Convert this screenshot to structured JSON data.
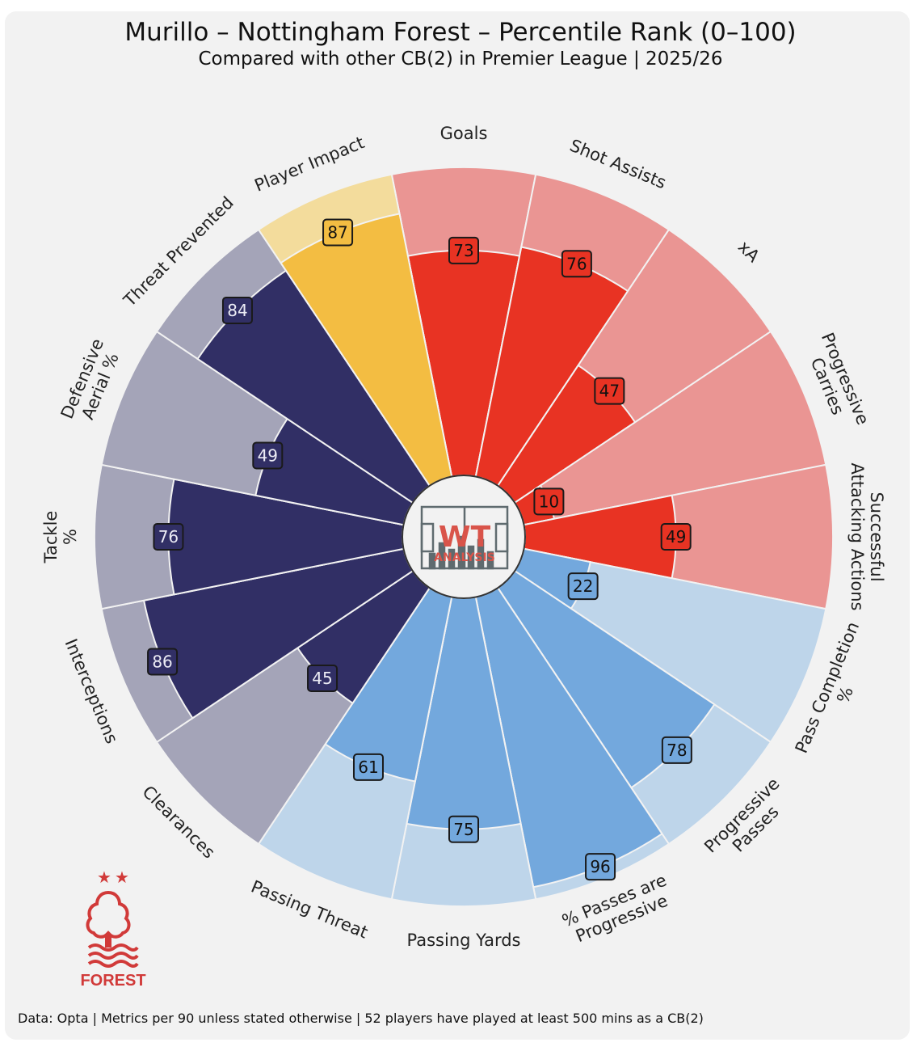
{
  "header": {
    "title": "Murillo – Nottingham Forest – Percentile Rank (0–100)",
    "subtitle": "Compared with other CB(2) in Premier League | 2025/26"
  },
  "footer": {
    "text": "Data: Opta | Metrics per 90 unless stated otherwise | 52 players have played at least 500 mins as a CB(2)"
  },
  "logos": {
    "center_logo_text_top": "WT",
    "center_logo_text_bottom": "ANALYSIS",
    "club_crest_text": "FOREST"
  },
  "colors": {
    "background": "#f2f2f2",
    "attacking_fill": "#e83323",
    "attacking_bg": "#ea9593",
    "passing_fill": "#73a8dd",
    "passing_bg": "#bed5ea",
    "defending_fill": "#312f65",
    "defending_bg": "#a4a4b8",
    "impact_fill": "#f3bd42",
    "impact_bg": "#f3dc9c",
    "club_red": "#d13a39"
  },
  "chart_data": {
    "type": "polar-bar",
    "title": "Murillo – Nottingham Forest – Percentile Rank (0–100)",
    "range": [
      0,
      100
    ],
    "start": "Goals at top, clockwise",
    "categories": [
      "Goals",
      "Shot Assists",
      "xA",
      "Progressive\nCarries",
      "Successful\nAttacking Actions",
      "Pass Completion\n%",
      "Progressive\nPasses",
      "% Passes are\nProgressive",
      "Passing Yards",
      "Passing Threat",
      "Clearances",
      "Interceptions",
      "Tackle\n%",
      "Defensive\nAerial %",
      "Threat Prevented",
      "Player Impact"
    ],
    "values": [
      73,
      76,
      47,
      10,
      49,
      22,
      78,
      96,
      75,
      61,
      45,
      86,
      76,
      49,
      84,
      87
    ],
    "groups": [
      "attacking",
      "attacking",
      "attacking",
      "attacking",
      "attacking",
      "passing",
      "passing",
      "passing",
      "passing",
      "passing",
      "defending",
      "defending",
      "defending",
      "defending",
      "defending",
      "impact"
    ],
    "value_labels": [
      "73",
      "76",
      "47",
      "10",
      "49",
      "22",
      "78",
      "96",
      "75",
      "61",
      "45",
      "86",
      "76",
      "49",
      "84",
      "87"
    ]
  }
}
